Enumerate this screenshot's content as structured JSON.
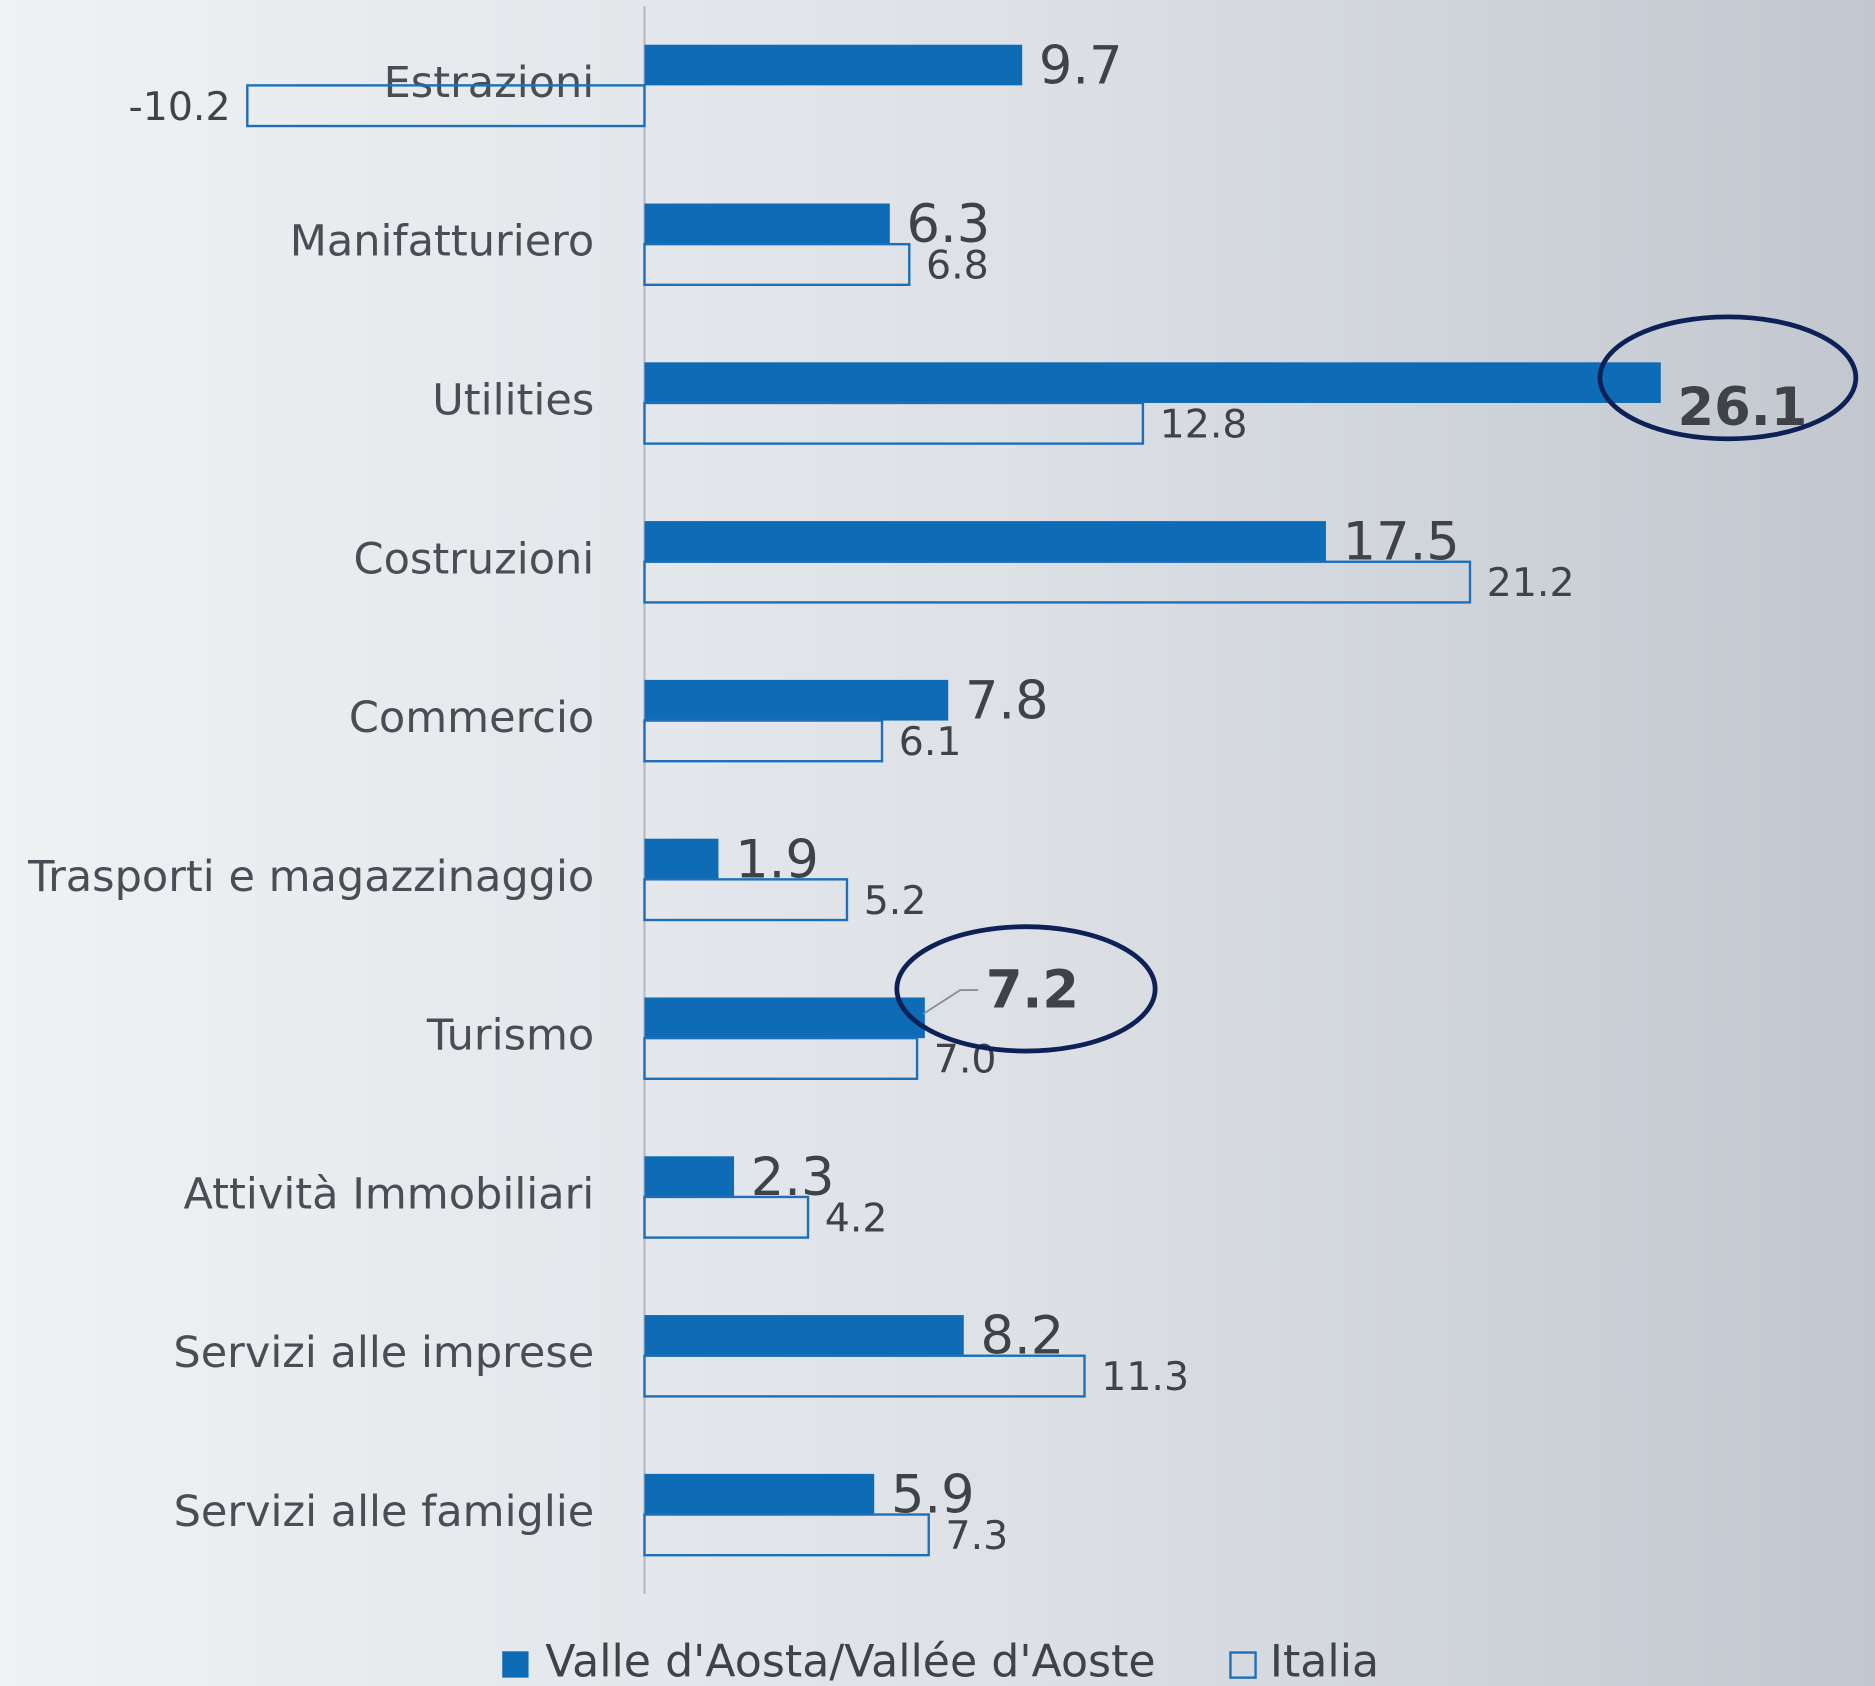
{
  "chart_data": {
    "type": "hbar",
    "categories": [
      "Estrazioni",
      "Manifatturiero",
      "Utilities",
      "Costruzioni",
      "Commercio",
      "Trasporti e magazzinaggio",
      "Turismo",
      "Attività Immobiliari",
      "Servizi alle imprese",
      "Servizi alle famiglie"
    ],
    "series": [
      {
        "name": "Valle d'Aosta/Vallée d'Aoste",
        "color": "#0e6bb5",
        "values": [
          9.7,
          6.3,
          26.1,
          17.5,
          7.8,
          1.9,
          7.2,
          2.3,
          8.2,
          5.9
        ],
        "value_labels": [
          "9.7",
          "6.3",
          "26.1",
          "17.5",
          "7.8",
          "1.9",
          "7.2",
          "2.3",
          "8.2",
          "5.9"
        ]
      },
      {
        "name": "Italia",
        "color": "#1f6fb8",
        "values": [
          -10.2,
          6.8,
          12.8,
          21.2,
          6.1,
          5.2,
          7.0,
          4.2,
          11.3,
          7.3
        ],
        "value_labels": [
          "-10.2",
          "6.8",
          "12.8",
          "21.2",
          "6.1",
          "5.2",
          "7.0",
          "4.2",
          "11.3",
          "7.3"
        ]
      }
    ],
    "xlim": [
      -16.55,
      31.6
    ]
  }
}
